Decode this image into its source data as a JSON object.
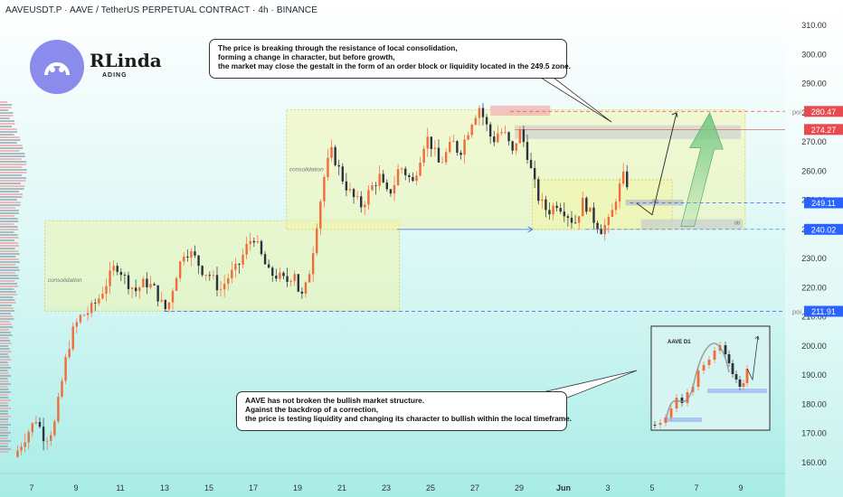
{
  "header": {
    "title": "AAVEUSDT.P · AAVE / TetherUS PERPETUAL CONTRACT · 4h · BINANCE"
  },
  "logo": {
    "icon": "smiley-eyes-icon",
    "brand_main": "RLinda",
    "brand_sub": "ADING",
    "circle_color": "#8b8bee"
  },
  "notes": {
    "top": [
      "The price is breaking through the resistance of local consolidation,",
      "forming a change in character, but before growth,",
      "the market may close the gestalt in the form of an order block or liquidity located in the 249.5 zone."
    ],
    "bottom": [
      "AAVE has not broken the bullish market structure.",
      "Against the backdrop of a correction,",
      "the price is testing liquidity and changing its character to bullish within the local timeframe."
    ]
  },
  "inset": {
    "label": "AAVE D1"
  },
  "colors": {
    "bull": "#26a69a",
    "bear": "#ef5350",
    "candle_up": "#f26b3a",
    "candle_down": "#2d3240",
    "zone_fill": "#f5f5a0",
    "poi_red": "#e94a4f",
    "level_blue": "#2962ff",
    "arrow_green": "#78c985"
  },
  "chart_data": {
    "type": "candlestick",
    "symbol": "AAVEUSDT.P",
    "timeframe": "4h",
    "ylim": [
      157,
      318
    ],
    "y_ticks": [
      160,
      170,
      180,
      190,
      200,
      210,
      220,
      230,
      240,
      250,
      260,
      270,
      280,
      290,
      300,
      310
    ],
    "y_tick_labels": [
      "160.00",
      "170.00",
      "180.00",
      "190.00",
      "200.00",
      "210.00",
      "220.00",
      "230.00",
      "240.00",
      "250.00",
      "260.00",
      "270.00",
      "280.00",
      "290.00",
      "300.00",
      "310.00"
    ],
    "x_ticks": [
      {
        "label": "7",
        "day": 7
      },
      {
        "label": "9",
        "day": 9
      },
      {
        "label": "11",
        "day": 11
      },
      {
        "label": "13",
        "day": 13
      },
      {
        "label": "15",
        "day": 15
      },
      {
        "label": "17",
        "day": 17
      },
      {
        "label": "19",
        "day": 19
      },
      {
        "label": "21",
        "day": 21
      },
      {
        "label": "23",
        "day": 23
      },
      {
        "label": "25",
        "day": 25
      },
      {
        "label": "27",
        "day": 27
      },
      {
        "label": "29",
        "day": 29
      },
      {
        "label": "Jun",
        "day": 31
      },
      {
        "label": "3",
        "day": 33
      },
      {
        "label": "5",
        "day": 35
      },
      {
        "label": "7",
        "day": 37
      },
      {
        "label": "9",
        "day": 39
      }
    ],
    "price_anchors": [
      [
        6.2,
        162
      ],
      [
        6.8,
        170
      ],
      [
        7.2,
        175
      ],
      [
        7.6,
        168
      ],
      [
        8.0,
        172
      ],
      [
        8.3,
        185
      ],
      [
        8.6,
        198
      ],
      [
        8.9,
        206
      ],
      [
        9.2,
        210
      ],
      [
        9.6,
        212
      ],
      [
        10.0,
        216
      ],
      [
        10.4,
        222
      ],
      [
        10.8,
        228
      ],
      [
        11.0,
        226
      ],
      [
        11.3,
        222
      ],
      [
        11.7,
        219
      ],
      [
        12.1,
        222
      ],
      [
        12.5,
        220
      ],
      [
        12.9,
        214
      ],
      [
        13.1,
        212
      ],
      [
        13.5,
        224
      ],
      [
        13.9,
        233
      ],
      [
        14.3,
        231
      ],
      [
        14.7,
        226
      ],
      [
        15.1,
        224
      ],
      [
        15.5,
        219
      ],
      [
        15.9,
        224
      ],
      [
        16.3,
        227
      ],
      [
        16.7,
        234
      ],
      [
        17.0,
        238
      ],
      [
        17.3,
        232
      ],
      [
        17.7,
        225
      ],
      [
        18.1,
        224
      ],
      [
        18.5,
        222
      ],
      [
        18.9,
        226
      ],
      [
        19.1,
        216
      ],
      [
        19.3,
        218
      ],
      [
        19.6,
        228
      ],
      [
        19.9,
        244
      ],
      [
        20.2,
        258
      ],
      [
        20.5,
        267
      ],
      [
        20.8,
        262
      ],
      [
        21.1,
        256
      ],
      [
        21.5,
        251
      ],
      [
        21.9,
        248
      ],
      [
        22.3,
        254
      ],
      [
        22.7,
        258
      ],
      [
        23.0,
        252
      ],
      [
        23.3,
        254
      ],
      [
        23.6,
        262
      ],
      [
        23.9,
        259
      ],
      [
        24.2,
        256
      ],
      [
        24.5,
        264
      ],
      [
        24.8,
        272
      ],
      [
        25.1,
        268
      ],
      [
        25.4,
        262
      ],
      [
        25.7,
        266
      ],
      [
        26.0,
        270
      ],
      [
        26.3,
        266
      ],
      [
        26.6,
        272
      ],
      [
        26.9,
        278
      ],
      [
        27.2,
        282
      ],
      [
        27.5,
        276
      ],
      [
        27.8,
        270
      ],
      [
        28.1,
        274
      ],
      [
        28.4,
        272
      ],
      [
        28.7,
        266
      ],
      [
        29.0,
        274
      ],
      [
        29.3,
        268
      ],
      [
        29.6,
        258
      ],
      [
        29.9,
        250
      ],
      [
        30.3,
        246
      ],
      [
        30.7,
        249
      ],
      [
        31.1,
        246
      ],
      [
        31.5,
        242
      ],
      [
        31.9,
        250
      ],
      [
        32.3,
        244
      ],
      [
        32.7,
        240
      ],
      [
        33.1,
        243
      ],
      [
        33.4,
        252
      ],
      [
        33.7,
        258
      ],
      [
        34.0,
        254
      ]
    ],
    "zones": [
      {
        "name": "consolidation",
        "label": "consolidation",
        "x0": 7.6,
        "x1": 23.6,
        "y0": 212,
        "y1": 243
      },
      {
        "name": "consolidation",
        "label": "consolidation",
        "x0": 18.5,
        "x1": 39.2,
        "y0": 240,
        "y1": 281
      },
      {
        "name": "local-range",
        "x0": 29.6,
        "x1": 35.9,
        "y0": 240,
        "y1": 257
      }
    ],
    "levels": [
      {
        "price": 280.47,
        "label": "280.47",
        "tag": "poi",
        "color": "#e94a4f",
        "style": "dashed"
      },
      {
        "price": 274.27,
        "label": "274.27",
        "color": "#e94a4f",
        "style": "solid"
      },
      {
        "price": 249.11,
        "label": "249.11",
        "color": "#2962ff",
        "style": "dashed"
      },
      {
        "price": 240.02,
        "label": "240.02",
        "color": "#2962ff",
        "style": "dashed"
      },
      {
        "price": 211.91,
        "label": "211.91",
        "tag": "poi",
        "color": "#2962ff",
        "style": "dashed"
      }
    ],
    "annotations": [
      {
        "text": "ob",
        "x": 35.0,
        "y": 249.3
      },
      {
        "text": "ob",
        "x": 38.7,
        "y": 241.6
      }
    ]
  }
}
